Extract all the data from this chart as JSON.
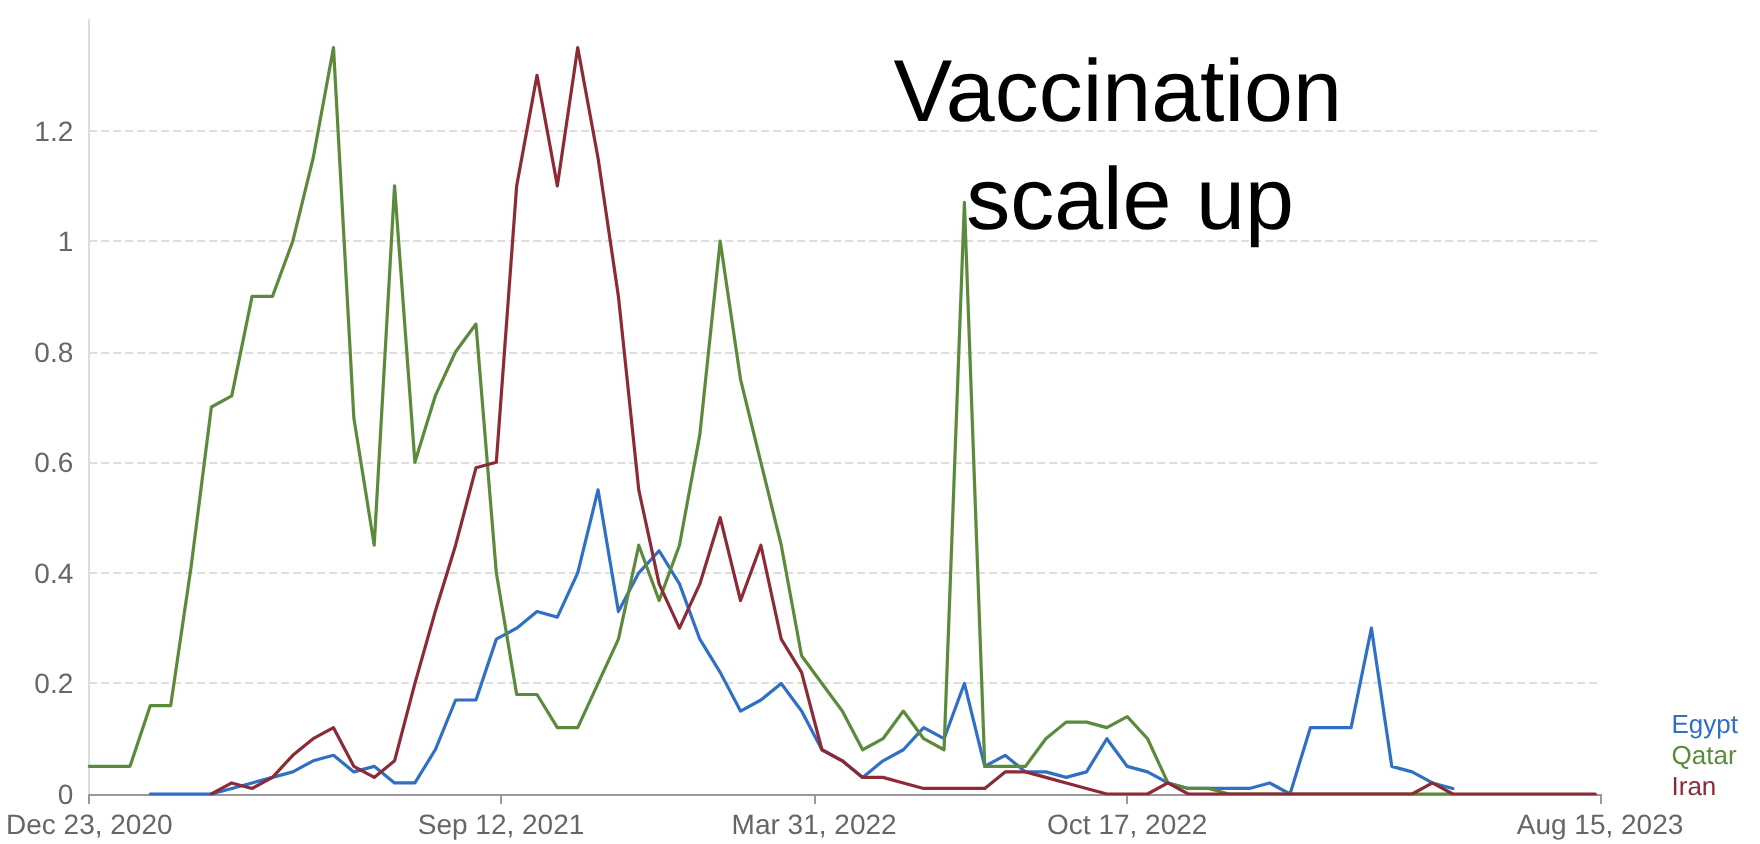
{
  "chart_data": {
    "type": "line",
    "title": "Vaccination scale up",
    "x": [
      "2020-12-23",
      "2021-01-05",
      "2021-01-18",
      "2021-01-31",
      "2021-02-13",
      "2021-02-26",
      "2021-03-11",
      "2021-03-24",
      "2021-04-06",
      "2021-04-19",
      "2021-05-02",
      "2021-05-15",
      "2021-05-28",
      "2021-06-10",
      "2021-06-23",
      "2021-07-06",
      "2021-07-19",
      "2021-08-01",
      "2021-08-14",
      "2021-08-27",
      "2021-09-09",
      "2021-09-22",
      "2021-10-05",
      "2021-10-18",
      "2021-10-31",
      "2021-11-13",
      "2021-11-26",
      "2021-12-09",
      "2021-12-22",
      "2022-01-04",
      "2022-01-17",
      "2022-01-30",
      "2022-02-12",
      "2022-02-25",
      "2022-03-10",
      "2022-03-23",
      "2022-04-05",
      "2022-04-18",
      "2022-05-01",
      "2022-05-14",
      "2022-05-27",
      "2022-06-09",
      "2022-06-22",
      "2022-07-05",
      "2022-07-18",
      "2022-07-31",
      "2022-08-13",
      "2022-08-26",
      "2022-09-08",
      "2022-09-21",
      "2022-10-04",
      "2022-10-17",
      "2022-10-30",
      "2022-11-12",
      "2022-11-25",
      "2022-12-08",
      "2022-12-21",
      "2023-01-03",
      "2023-01-16",
      "2023-01-29",
      "2023-02-11",
      "2023-02-24",
      "2023-03-09",
      "2023-03-22",
      "2023-04-04",
      "2023-04-17",
      "2023-04-30",
      "2023-05-13",
      "2023-05-26",
      "2023-06-08",
      "2023-06-21",
      "2023-07-04",
      "2023-07-17",
      "2023-07-30",
      "2023-08-12"
    ],
    "series": [
      {
        "name": "Egypt",
        "color": "#2f6fc4",
        "values": [
          null,
          null,
          null,
          0,
          0,
          0,
          0,
          0.01,
          0.02,
          0.03,
          0.04,
          0.06,
          0.07,
          0.04,
          0.05,
          0.02,
          0.02,
          0.08,
          0.17,
          0.17,
          0.28,
          0.3,
          0.33,
          0.32,
          0.4,
          0.55,
          0.33,
          0.4,
          0.44,
          0.38,
          0.28,
          0.22,
          0.15,
          0.17,
          0.2,
          0.15,
          0.08,
          0.06,
          0.03,
          0.06,
          0.08,
          0.12,
          0.1,
          0.2,
          0.05,
          0.07,
          0.04,
          0.04,
          0.03,
          0.04,
          0.1,
          0.05,
          0.04,
          0.02,
          0.01,
          0.01,
          0.01,
          0.01,
          0.02,
          0,
          0.12,
          0.12,
          0.12,
          0.3,
          0.05,
          0.04,
          0.02,
          0.01,
          null,
          null,
          null,
          null,
          null,
          null,
          null
        ]
      },
      {
        "name": "Qatar",
        "color": "#5a8a3a",
        "values": [
          0.05,
          0.05,
          0.05,
          0.16,
          0.16,
          0.41,
          0.7,
          0.72,
          0.9,
          0.9,
          1.0,
          1.15,
          1.35,
          0.68,
          0.45,
          1.1,
          0.6,
          0.72,
          0.8,
          0.85,
          0.4,
          0.18,
          0.18,
          0.12,
          0.12,
          0.2,
          0.28,
          0.45,
          0.35,
          0.45,
          0.65,
          1.0,
          0.75,
          0.6,
          0.45,
          0.25,
          0.2,
          0.15,
          0.08,
          0.1,
          0.15,
          0.1,
          0.08,
          1.07,
          0.05,
          0.05,
          0.05,
          0.1,
          0.13,
          0.13,
          0.12,
          0.14,
          0.1,
          0.02,
          0.01,
          0.01,
          0,
          0,
          0,
          0,
          0,
          0,
          0,
          0,
          0,
          0,
          0,
          0,
          null,
          null,
          null,
          null,
          null,
          null,
          null
        ]
      },
      {
        "name": "Iran",
        "color": "#8c2a35",
        "values": [
          null,
          null,
          null,
          null,
          null,
          null,
          0,
          0.02,
          0.01,
          0.03,
          0.07,
          0.1,
          0.12,
          0.05,
          0.03,
          0.06,
          0.2,
          0.33,
          0.45,
          0.59,
          0.6,
          1.1,
          1.3,
          1.1,
          1.35,
          1.15,
          0.9,
          0.55,
          0.38,
          0.3,
          0.38,
          0.5,
          0.35,
          0.45,
          0.28,
          0.22,
          0.08,
          0.06,
          0.03,
          0.03,
          0.02,
          0.01,
          0.01,
          0.01,
          0.01,
          0.04,
          0.04,
          0.03,
          0.02,
          0.01,
          0,
          0,
          0,
          0.02,
          0,
          0,
          0,
          0,
          0,
          0,
          0,
          0,
          0,
          0,
          0,
          0,
          0.02,
          0,
          0,
          0,
          0,
          0,
          0,
          0,
          0
        ]
      }
    ],
    "xlim": [
      "2020-12-23",
      "2023-08-15"
    ],
    "xticks": [
      {
        "value": "2020-12-23",
        "label": "Dec 23, 2020"
      },
      {
        "value": "2021-09-12",
        "label": "Sep 12, 2021"
      },
      {
        "value": "2022-03-31",
        "label": "Mar 31, 2022"
      },
      {
        "value": "2022-10-17",
        "label": "Oct 17, 2022"
      },
      {
        "value": "2023-08-15",
        "label": "Aug 15, 2023"
      }
    ],
    "ylim": [
      0,
      1.4
    ],
    "yticks": [
      0,
      0.2,
      0.4,
      0.6,
      0.8,
      1,
      1.2
    ],
    "grid": "y",
    "legend": "right",
    "marker": "none",
    "line_style": "solid"
  }
}
